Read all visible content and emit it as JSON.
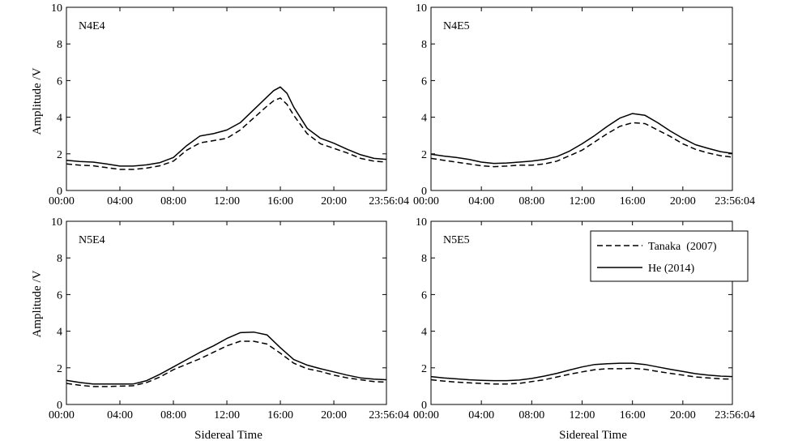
{
  "figure": {
    "ylabel": "Amplitude /V",
    "xlabel": "Sidereal Time",
    "legend": {
      "placement": "top-right of panel N5E5",
      "entries": [
        {
          "label": "Tanaka  (2007)",
          "style": "dashed"
        },
        {
          "label": "He (2014)",
          "style": "solid"
        }
      ]
    }
  },
  "chart_data": [
    {
      "type": "line",
      "title": "N4E4",
      "x_ticks": [
        "00:00",
        "04:00",
        "08:00",
        "12:00",
        "16:00",
        "20:00",
        "23:56:04"
      ],
      "x_tick_values": [
        0,
        4,
        8,
        12,
        16,
        20,
        23.935
      ],
      "xlim": [
        0,
        23.935
      ],
      "y_ticks": [
        "0",
        "2",
        "4",
        "6",
        "8",
        "10"
      ],
      "ylim": [
        0,
        10
      ],
      "grid": false,
      "x": [
        0,
        1,
        2,
        3,
        4,
        5,
        6,
        7,
        8,
        9,
        10,
        11,
        12,
        13,
        14,
        15,
        15.5,
        16,
        16.5,
        17,
        18,
        19,
        20,
        21,
        22,
        23,
        23.935
      ],
      "series": [
        {
          "name": "Tanaka  (2007)",
          "style": "dashed",
          "color": "#000000",
          "values": [
            1.45,
            1.38,
            1.35,
            1.25,
            1.15,
            1.15,
            1.22,
            1.35,
            1.6,
            2.2,
            2.6,
            2.72,
            2.85,
            3.3,
            3.95,
            4.6,
            4.9,
            5.05,
            4.7,
            4.1,
            3.1,
            2.55,
            2.3,
            2.05,
            1.75,
            1.6,
            1.55
          ]
        },
        {
          "name": "He (2014)",
          "style": "solid",
          "color": "#000000",
          "values": [
            1.65,
            1.58,
            1.55,
            1.45,
            1.33,
            1.33,
            1.4,
            1.52,
            1.8,
            2.45,
            2.98,
            3.1,
            3.3,
            3.7,
            4.4,
            5.1,
            5.45,
            5.65,
            5.3,
            4.55,
            3.4,
            2.85,
            2.58,
            2.25,
            1.95,
            1.75,
            1.7
          ]
        }
      ]
    },
    {
      "type": "line",
      "title": "N4E5",
      "x_ticks": [
        "00:00",
        "04:00",
        "08:00",
        "12:00",
        "16:00",
        "20:00",
        "23:56:04"
      ],
      "x_tick_values": [
        0,
        4,
        8,
        12,
        16,
        20,
        23.935
      ],
      "xlim": [
        0,
        23.935
      ],
      "y_ticks": [
        "0",
        "2",
        "4",
        "6",
        "8",
        "10"
      ],
      "ylim": [
        0,
        10
      ],
      "grid": false,
      "x": [
        0,
        1,
        2,
        3,
        4,
        5,
        6,
        7,
        8,
        9,
        10,
        11,
        12,
        13,
        14,
        15,
        16,
        17,
        18,
        19,
        20,
        21,
        22,
        23,
        23.935
      ],
      "series": [
        {
          "name": "Tanaka  (2007)",
          "style": "dashed",
          "color": "#000000",
          "values": [
            1.75,
            1.65,
            1.55,
            1.45,
            1.35,
            1.3,
            1.33,
            1.38,
            1.38,
            1.45,
            1.6,
            1.9,
            2.2,
            2.65,
            3.1,
            3.5,
            3.7,
            3.65,
            3.3,
            2.95,
            2.55,
            2.25,
            2.05,
            1.9,
            1.82
          ]
        },
        {
          "name": "He (2014)",
          "style": "solid",
          "color": "#000000",
          "values": [
            1.98,
            1.88,
            1.8,
            1.7,
            1.55,
            1.48,
            1.5,
            1.55,
            1.6,
            1.7,
            1.85,
            2.15,
            2.55,
            3.0,
            3.5,
            3.95,
            4.2,
            4.1,
            3.7,
            3.25,
            2.85,
            2.5,
            2.3,
            2.12,
            2.02
          ]
        }
      ]
    },
    {
      "type": "line",
      "title": "N5E4",
      "x_ticks": [
        "00:00",
        "04:00",
        "08:00",
        "12:00",
        "16:00",
        "20:00",
        "23:56:04"
      ],
      "x_tick_values": [
        0,
        4,
        8,
        12,
        16,
        20,
        23.935
      ],
      "xlim": [
        0,
        23.935
      ],
      "y_ticks": [
        "0",
        "2",
        "4",
        "6",
        "8",
        "10"
      ],
      "ylim": [
        0,
        10
      ],
      "grid": false,
      "x": [
        0,
        1,
        2,
        3,
        4,
        5,
        6,
        7,
        8,
        9,
        10,
        11,
        12,
        13,
        14,
        15,
        16,
        17,
        18,
        19,
        20,
        21,
        22,
        23,
        23.935
      ],
      "series": [
        {
          "name": "Tanaka  (2007)",
          "style": "dashed",
          "color": "#000000",
          "values": [
            1.15,
            1.05,
            0.98,
            0.98,
            1.0,
            1.02,
            1.2,
            1.5,
            1.9,
            2.2,
            2.5,
            2.85,
            3.2,
            3.45,
            3.45,
            3.3,
            2.8,
            2.25,
            1.95,
            1.8,
            1.6,
            1.45,
            1.35,
            1.25,
            1.22
          ]
        },
        {
          "name": "He (2014)",
          "style": "solid",
          "color": "#000000",
          "values": [
            1.32,
            1.2,
            1.12,
            1.12,
            1.12,
            1.12,
            1.3,
            1.65,
            2.05,
            2.45,
            2.85,
            3.2,
            3.6,
            3.92,
            3.95,
            3.8,
            3.1,
            2.45,
            2.15,
            1.95,
            1.78,
            1.6,
            1.45,
            1.38,
            1.35
          ]
        }
      ]
    },
    {
      "type": "line",
      "title": "N5E5",
      "x_ticks": [
        "00:00",
        "04:00",
        "08:00",
        "12:00",
        "16:00",
        "20:00",
        "23:56:04"
      ],
      "x_tick_values": [
        0,
        4,
        8,
        12,
        16,
        20,
        23.935
      ],
      "xlim": [
        0,
        23.935
      ],
      "y_ticks": [
        "0",
        "2",
        "4",
        "6",
        "8",
        "10"
      ],
      "ylim": [
        0,
        10
      ],
      "grid": false,
      "x": [
        0,
        1,
        2,
        3,
        4,
        5,
        6,
        7,
        8,
        9,
        10,
        11,
        12,
        13,
        14,
        15,
        16,
        17,
        18,
        19,
        20,
        21,
        22,
        23,
        23.935
      ],
      "series": [
        {
          "name": "Tanaka  (2007)",
          "style": "dashed",
          "color": "#000000",
          "values": [
            1.35,
            1.28,
            1.22,
            1.18,
            1.15,
            1.12,
            1.12,
            1.15,
            1.25,
            1.35,
            1.5,
            1.65,
            1.78,
            1.9,
            1.95,
            1.95,
            1.97,
            1.92,
            1.8,
            1.7,
            1.6,
            1.5,
            1.45,
            1.4,
            1.38
          ]
        },
        {
          "name": "He (2014)",
          "style": "solid",
          "color": "#000000",
          "values": [
            1.52,
            1.45,
            1.4,
            1.35,
            1.32,
            1.3,
            1.3,
            1.33,
            1.42,
            1.55,
            1.7,
            1.88,
            2.05,
            2.18,
            2.22,
            2.25,
            2.25,
            2.18,
            2.05,
            1.92,
            1.8,
            1.68,
            1.6,
            1.55,
            1.52
          ]
        }
      ]
    }
  ]
}
